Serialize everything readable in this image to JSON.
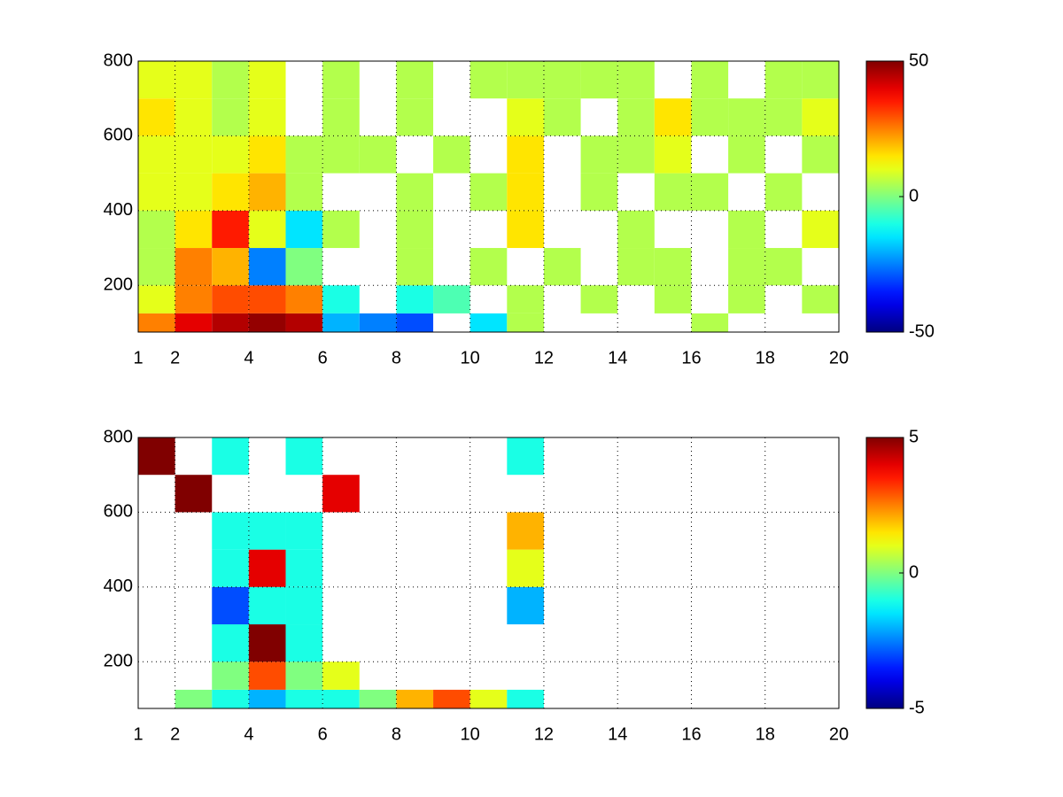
{
  "chart_data": [
    {
      "type": "heatmap",
      "colormap": "jet",
      "grid": true,
      "x_edges": [
        1,
        2,
        3,
        4,
        5,
        6,
        7,
        8,
        9,
        10,
        11,
        12,
        13,
        14,
        15,
        16,
        17,
        18,
        19,
        20
      ],
      "y_edges": [
        75,
        125,
        200,
        300,
        400,
        500,
        600,
        700,
        800
      ],
      "values": [
        [
          25,
          40,
          45,
          48,
          45,
          -20,
          -25,
          -30,
          null,
          -15,
          5,
          null,
          null,
          null,
          null,
          5,
          null,
          null,
          null
        ],
        [
          10,
          25,
          30,
          30,
          25,
          -10,
          null,
          -10,
          -5,
          null,
          5,
          null,
          5,
          null,
          5,
          null,
          5,
          null,
          5
        ],
        [
          5,
          25,
          20,
          -25,
          0,
          null,
          null,
          5,
          null,
          5,
          null,
          5,
          null,
          5,
          5,
          null,
          5,
          5,
          null
        ],
        [
          5,
          15,
          35,
          10,
          -15,
          5,
          null,
          5,
          null,
          null,
          15,
          null,
          null,
          5,
          null,
          null,
          5,
          null,
          10
        ],
        [
          10,
          10,
          15,
          20,
          5,
          null,
          null,
          5,
          null,
          5,
          15,
          null,
          5,
          null,
          5,
          5,
          null,
          5,
          null
        ],
        [
          10,
          10,
          10,
          15,
          5,
          5,
          5,
          null,
          5,
          null,
          15,
          null,
          5,
          5,
          10,
          null,
          5,
          null,
          5
        ],
        [
          15,
          10,
          5,
          10,
          null,
          5,
          null,
          5,
          null,
          null,
          10,
          5,
          null,
          5,
          15,
          5,
          5,
          5,
          10
        ],
        [
          10,
          10,
          5,
          10,
          null,
          5,
          null,
          5,
          null,
          5,
          5,
          5,
          5,
          5,
          null,
          5,
          null,
          5,
          5
        ]
      ],
      "xlim": [
        1,
        20
      ],
      "ylim": [
        75,
        800
      ],
      "xticks": [
        1,
        2,
        4,
        6,
        8,
        10,
        12,
        14,
        16,
        18,
        20
      ],
      "yticks": [
        200,
        400,
        600,
        800
      ],
      "clim": [
        -50,
        50
      ],
      "cticks": [
        -50,
        0,
        50
      ]
    },
    {
      "type": "heatmap",
      "colormap": "jet",
      "grid": true,
      "x_edges": [
        1,
        2,
        3,
        4,
        5,
        6,
        7,
        8,
        9,
        10,
        11,
        12,
        13,
        14,
        15,
        16,
        17,
        18,
        19,
        20
      ],
      "y_edges": [
        75,
        125,
        200,
        300,
        400,
        500,
        600,
        700,
        800
      ],
      "values": [
        [
          null,
          0,
          -1,
          -2,
          -1,
          -1,
          0,
          2,
          3,
          1,
          -1,
          null,
          null,
          null,
          null,
          null,
          null,
          null,
          null
        ],
        [
          null,
          null,
          0,
          3,
          0,
          1,
          null,
          null,
          null,
          null,
          null,
          null,
          null,
          null,
          null,
          null,
          null,
          null,
          null
        ],
        [
          null,
          null,
          -1,
          5,
          -1,
          null,
          null,
          null,
          null,
          null,
          null,
          null,
          null,
          null,
          null,
          null,
          null,
          null,
          null
        ],
        [
          null,
          null,
          -3,
          -1,
          -1,
          null,
          null,
          null,
          null,
          null,
          -2,
          null,
          null,
          null,
          null,
          null,
          null,
          null,
          null
        ],
        [
          null,
          null,
          -1,
          4,
          -1,
          null,
          null,
          null,
          null,
          null,
          1,
          null,
          null,
          null,
          null,
          null,
          null,
          null,
          null
        ],
        [
          null,
          null,
          -1,
          -1,
          -1,
          null,
          null,
          null,
          null,
          null,
          2,
          null,
          null,
          null,
          null,
          null,
          null,
          null,
          null
        ],
        [
          null,
          5,
          null,
          null,
          null,
          4,
          null,
          null,
          null,
          null,
          null,
          null,
          null,
          null,
          null,
          null,
          null,
          null,
          null
        ],
        [
          5,
          null,
          -1,
          null,
          -1,
          null,
          null,
          null,
          null,
          null,
          -1,
          null,
          null,
          null,
          null,
          null,
          null,
          null,
          null
        ]
      ],
      "xlim": [
        1,
        20
      ],
      "ylim": [
        75,
        800
      ],
      "xticks": [
        1,
        2,
        4,
        6,
        8,
        10,
        12,
        14,
        16,
        18,
        20
      ],
      "yticks": [
        200,
        400,
        600,
        800
      ],
      "clim": [
        -5,
        5
      ],
      "cticks": [
        -5,
        0,
        5
      ]
    }
  ]
}
